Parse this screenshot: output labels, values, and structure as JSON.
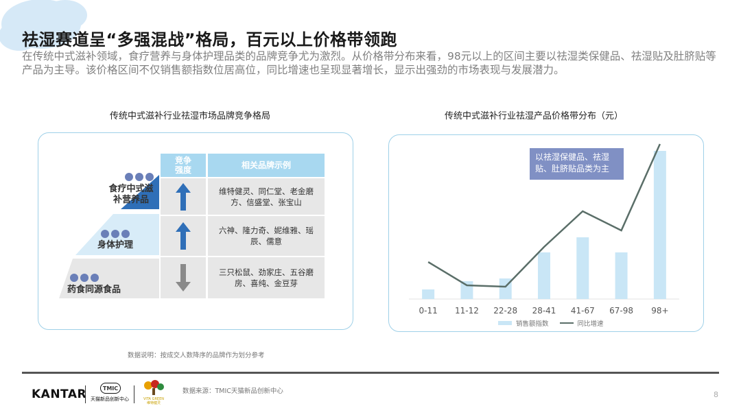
{
  "page": {
    "title": "祛湿赛道呈“多强混战”格局，百元以上价格带领跑",
    "description": "在传统中式滋补领域，食疗营养与身体护理品类的品牌竞争尤为激烈。从价格带分布来看，98元以上的区间主要以祛湿类保健品、祛湿贴及肚脐贴等产品为主导。该价格区间不仅销售额指数位居高位，同比增速也呈现显著增长，显示出强劲的市场表现与发展潜力。",
    "page_number": "8"
  },
  "left_panel": {
    "title": "传统中式滋补行业祛湿市场品牌竞争格局",
    "table_headers": [
      "竞争强度",
      "相关品牌示例"
    ],
    "tiers": [
      {
        "label": "食疗中式滋补营养品",
        "dots": 3,
        "trend": "up",
        "brands": "维特健灵、同仁堂、老金磨方、信盛堂、张宝山"
      },
      {
        "label": "身体护理",
        "dots": 3,
        "trend": "up",
        "brands": "六神、隆力奇、妮维雅、瑶辰、儒意"
      },
      {
        "label": "药食同源食品",
        "dots": 3,
        "trend": "down",
        "brands": "三只松鼠、劲家庄、五谷磨房、喜纯、金豆芽"
      }
    ],
    "note": "数据说明：按成交人数降序的品牌作为划分参考"
  },
  "chart_data": {
    "type": "bar",
    "title": "传统中式滋补行业祛湿产品价格带分布（元）",
    "categories": [
      "0-11",
      "11-12",
      "22-28",
      "28-41",
      "41-67",
      "67-98",
      "98+"
    ],
    "series": [
      {
        "name": "销售额指数",
        "type": "bar",
        "values": [
          7,
          13,
          15,
          34,
          45,
          34,
          108
        ]
      },
      {
        "name": "同比增速",
        "type": "line",
        "values": [
          27,
          10,
          9,
          38,
          64,
          50,
          113
        ]
      }
    ],
    "annotation": "以祛湿保健品、祛湿贴、肚脐贴品类为主",
    "ylim": [
      0,
      115
    ],
    "colors": {
      "bar": "#c9e6f6",
      "line": "#5a6e68"
    },
    "legend_position": "bottom"
  },
  "footer": {
    "brand_kantar": "KANTAR",
    "tmic_badge": "TMIC",
    "tmic_caption": "天猫新品创新中心",
    "vita_caption": "VITA GREEN 维特健灵",
    "source": "数据来源：TMIC天猫新品创新中心"
  }
}
